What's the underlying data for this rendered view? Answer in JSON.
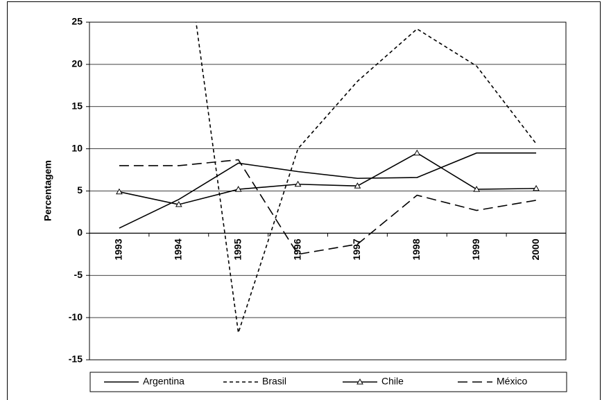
{
  "chart_data": {
    "type": "line",
    "y_label": "Percentagem",
    "categories": [
      "1993",
      "1994",
      "1995",
      "1996",
      "1997",
      "1998",
      "1999",
      "2000"
    ],
    "series": [
      {
        "name": "Argentina",
        "color": "#000000",
        "dash": "solid",
        "marker": "none",
        "values": [
          0.6,
          4.0,
          8.3,
          7.3,
          6.5,
          6.6,
          9.5,
          9.5
        ]
      },
      {
        "name": "Brasil",
        "color": "#000000",
        "dash": "short",
        "marker": "none",
        "values": [
          null,
          40,
          -11.8,
          10,
          18,
          24.2,
          19.8,
          10.6
        ]
      },
      {
        "name": "Chile",
        "color": "#000000",
        "dash": "solid",
        "marker": "triangle",
        "values": [
          4.9,
          3.4,
          5.2,
          5.8,
          5.6,
          9.5,
          5.2,
          5.3
        ]
      },
      {
        "name": "México",
        "color": "#000000",
        "dash": "long",
        "marker": "none",
        "values": [
          8.0,
          8.0,
          8.7,
          -2.5,
          -1.3,
          4.5,
          2.7,
          3.9
        ]
      }
    ],
    "ylim": [
      -15,
      25
    ],
    "yticks": [
      -15,
      -10,
      -5,
      0,
      5,
      10,
      15,
      20,
      25
    ],
    "grid": true,
    "legend": "bottom"
  }
}
